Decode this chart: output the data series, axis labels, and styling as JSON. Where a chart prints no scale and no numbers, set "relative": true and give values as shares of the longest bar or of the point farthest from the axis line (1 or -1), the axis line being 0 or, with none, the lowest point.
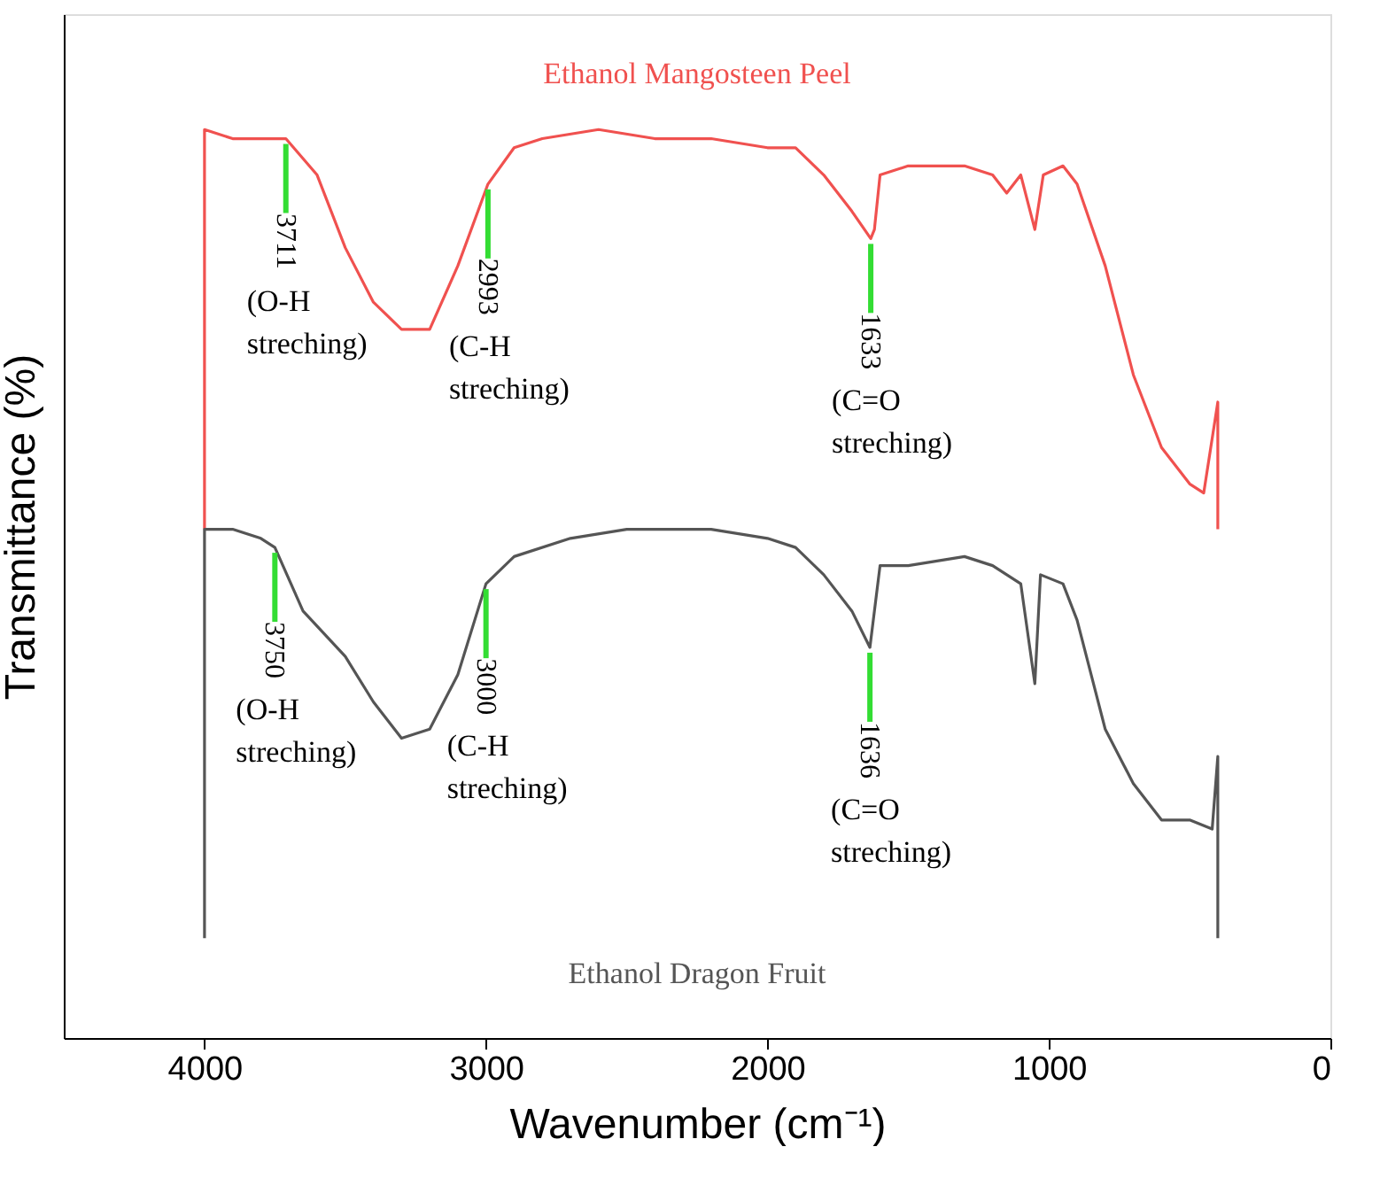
{
  "chart_data": {
    "type": "line",
    "relative": true,
    "xlabel": "Wavenumber (cm⁻¹)",
    "ylabel": "Transmittance (%)",
    "xlim": [
      4500,
      0
    ],
    "xticks": [
      4000,
      3000,
      2000,
      1000,
      0
    ],
    "grid": false,
    "legend": false,
    "line_style": "solid",
    "marker": "none",
    "series": [
      {
        "name": "Ethanol Mangosteen Peel",
        "color": "#f0514f",
        "x": [
          4000,
          4000,
          3900,
          3750,
          3711,
          3600,
          3500,
          3400,
          3300,
          3200,
          3100,
          2993,
          2900,
          2800,
          2600,
          2400,
          2200,
          2000,
          1900,
          1800,
          1700,
          1633,
          1620,
          1600,
          1500,
          1400,
          1300,
          1200,
          1150,
          1100,
          1050,
          1020,
          950,
          900,
          800,
          700,
          600,
          500,
          450,
          400,
          400
        ],
        "values": [
          0.56,
          1.0,
          0.99,
          0.99,
          0.99,
          0.95,
          0.87,
          0.81,
          0.78,
          0.78,
          0.85,
          0.94,
          0.98,
          0.99,
          1.0,
          0.99,
          0.99,
          0.98,
          0.98,
          0.95,
          0.91,
          0.88,
          0.89,
          0.95,
          0.96,
          0.96,
          0.96,
          0.95,
          0.93,
          0.95,
          0.89,
          0.95,
          0.96,
          0.94,
          0.85,
          0.73,
          0.65,
          0.61,
          0.6,
          0.7,
          0.56
        ]
      },
      {
        "name": "Ethanol Dragon Fruit",
        "color": "#555555",
        "x": [
          4000,
          4000,
          3900,
          3800,
          3750,
          3650,
          3500,
          3400,
          3300,
          3200,
          3100,
          3000,
          2900,
          2700,
          2500,
          2200,
          2000,
          1900,
          1800,
          1700,
          1636,
          1600,
          1500,
          1300,
          1200,
          1100,
          1050,
          1030,
          950,
          900,
          850,
          800,
          700,
          600,
          500,
          420,
          400,
          400
        ],
        "values": [
          0.11,
          0.56,
          0.56,
          0.55,
          0.54,
          0.47,
          0.42,
          0.37,
          0.33,
          0.34,
          0.4,
          0.5,
          0.53,
          0.55,
          0.56,
          0.56,
          0.55,
          0.54,
          0.51,
          0.47,
          0.43,
          0.52,
          0.52,
          0.53,
          0.52,
          0.5,
          0.39,
          0.51,
          0.5,
          0.46,
          0.4,
          0.34,
          0.28,
          0.24,
          0.24,
          0.23,
          0.31,
          0.11
        ]
      }
    ],
    "annotations": [
      {
        "text": "3711",
        "x": 3711,
        "y": 0.99
      },
      "(O-H streching)",
      {
        "text": "2993",
        "x": 2993,
        "y": 0.94
      },
      "(C-H streching)",
      {
        "text": "1633",
        "x": 1633,
        "y": 0.88
      },
      "(C=O streching)",
      {
        "text": "3750",
        "x": 3750,
        "y": 0.54
      },
      "(O-H streching)",
      {
        "text": "3000",
        "x": 3000,
        "y": 0.5
      },
      "(C-H streching)",
      {
        "text": "1636",
        "x": 1636,
        "y": 0.43
      },
      "(C=O streching)"
    ]
  }
}
